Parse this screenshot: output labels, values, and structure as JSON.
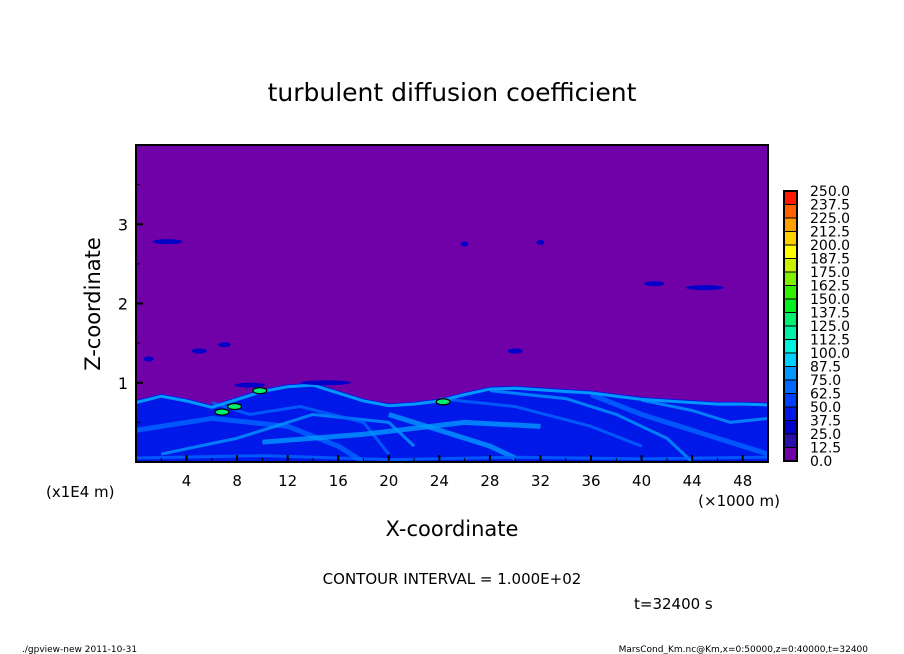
{
  "chart_data": {
    "type": "heatmap",
    "title": "turbulent diffusion coefficient",
    "xlabel": "X-coordinate",
    "ylabel": "Z-coordinate",
    "x_unit": "(×1000 m)",
    "y_unit": "(x1E4 m)",
    "xlim": [
      0,
      50
    ],
    "ylim": [
      0,
      4
    ],
    "x_ticks": [
      4,
      8,
      12,
      16,
      20,
      24,
      28,
      32,
      36,
      40,
      44,
      48
    ],
    "y_ticks": [
      1,
      2,
      3
    ],
    "colorbar": {
      "levels": [
        "0.0",
        "12.5",
        "25.0",
        "37.5",
        "50.0",
        "62.5",
        "75.0",
        "87.5",
        "100.0",
        "112.5",
        "125.0",
        "137.5",
        "150.0",
        "162.5",
        "175.0",
        "187.5",
        "200.0",
        "212.5",
        "225.0",
        "237.5",
        "250.0"
      ],
      "colors": [
        "#7000a8",
        "#2a10a8",
        "#0000c8",
        "#0018e8",
        "#0040ff",
        "#0068ff",
        "#0098ff",
        "#00d0ff",
        "#00f0e0",
        "#00f0a8",
        "#00f070",
        "#00f020",
        "#30f000",
        "#80f000",
        "#c8f000",
        "#ffff00",
        "#ffd000",
        "#ffa000",
        "#ff6000",
        "#ff1800",
        "#ff8080"
      ]
    },
    "annotation": "CONTOUR INTERVAL = 1.000E+02",
    "time_label": "t=32400 s"
  },
  "footer": {
    "left": "./gpview-new  2011-10-31",
    "right": "MarsCond_Km.nc@Km,x=0:50000,z=0:40000,t=32400"
  }
}
